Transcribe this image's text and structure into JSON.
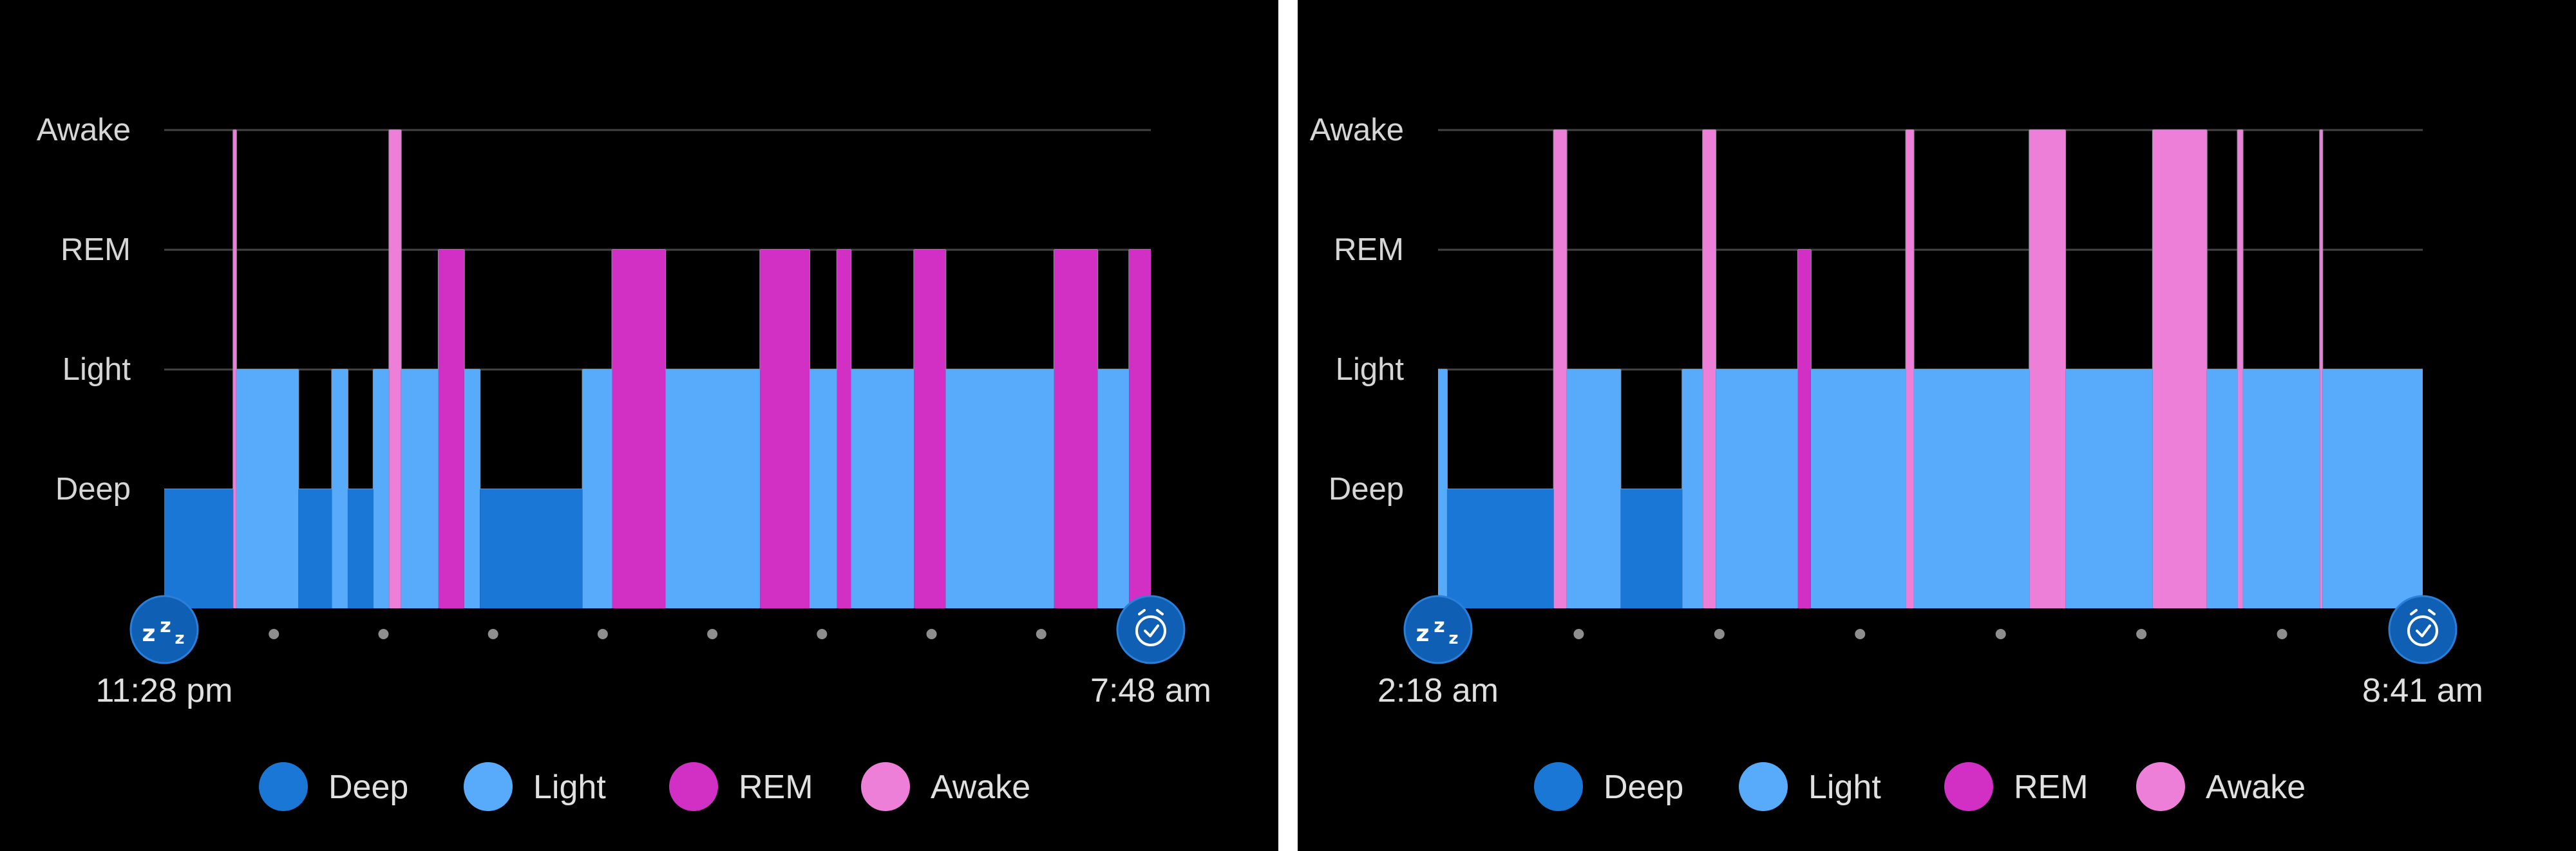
{
  "stage_order": [
    "Deep",
    "Light",
    "REM",
    "Awake"
  ],
  "colors": {
    "Deep": "#1b77d6",
    "Light": "#58abfa",
    "REM": "#d22fc4",
    "Awake": "#ee7fd8",
    "background": "#000000",
    "marker": "#0f5fb5"
  },
  "legend": [
    {
      "stage": "Deep",
      "label": "Deep"
    },
    {
      "stage": "Light",
      "label": "Light"
    },
    {
      "stage": "REM",
      "label": "REM"
    },
    {
      "stage": "Awake",
      "label": "Awake"
    }
  ],
  "icons": {
    "start": "sleep-zzz-icon",
    "end": "alarm-clock-icon"
  },
  "chart_data": [
    {
      "type": "area",
      "title": "",
      "y_categories": [
        "Deep",
        "Light",
        "REM",
        "Awake"
      ],
      "start_label": "11:28 pm",
      "end_label": "7:48 am",
      "x_range_minutes": [
        0,
        500
      ],
      "tick_dots": 8,
      "segments": [
        {
          "start": 0.0,
          "end": 35.0,
          "stage": "Deep"
        },
        {
          "start": 35.0,
          "end": 36.5,
          "stage": "Awake"
        },
        {
          "start": 36.5,
          "end": 68.0,
          "stage": "Light"
        },
        {
          "start": 68.0,
          "end": 85.0,
          "stage": "Deep"
        },
        {
          "start": 85.0,
          "end": 93.0,
          "stage": "Light"
        },
        {
          "start": 93.0,
          "end": 106.0,
          "stage": "Deep"
        },
        {
          "start": 106.0,
          "end": 114.0,
          "stage": "Light"
        },
        {
          "start": 114.0,
          "end": 120.0,
          "stage": "Awake"
        },
        {
          "start": 120.0,
          "end": 139.0,
          "stage": "Light"
        },
        {
          "start": 139.0,
          "end": 152.0,
          "stage": "REM"
        },
        {
          "start": 152.0,
          "end": 160.0,
          "stage": "Light"
        },
        {
          "start": 160.0,
          "end": 212.0,
          "stage": "Deep"
        },
        {
          "start": 212.0,
          "end": 227.0,
          "stage": "Light"
        },
        {
          "start": 227.0,
          "end": 254.0,
          "stage": "REM"
        },
        {
          "start": 254.0,
          "end": 302.0,
          "stage": "Light"
        },
        {
          "start": 302.0,
          "end": 327.0,
          "stage": "REM"
        },
        {
          "start": 327.0,
          "end": 341.0,
          "stage": "Light"
        },
        {
          "start": 341.0,
          "end": 348.0,
          "stage": "REM"
        },
        {
          "start": 348.0,
          "end": 380.0,
          "stage": "Light"
        },
        {
          "start": 380.0,
          "end": 396.0,
          "stage": "REM"
        },
        {
          "start": 396.0,
          "end": 451.0,
          "stage": "Light"
        },
        {
          "start": 451.0,
          "end": 473.0,
          "stage": "REM"
        },
        {
          "start": 473.0,
          "end": 489.0,
          "stage": "Light"
        },
        {
          "start": 489.0,
          "end": 500.0,
          "stage": "REM"
        }
      ]
    },
    {
      "type": "area",
      "title": "",
      "y_categories": [
        "Deep",
        "Light",
        "REM",
        "Awake"
      ],
      "start_label": "2:18 am",
      "end_label": "8:41 am",
      "x_range_minutes": [
        0,
        383
      ],
      "tick_dots": 6,
      "segments": [
        {
          "start": 0.0,
          "end": 3.5,
          "stage": "Light"
        },
        {
          "start": 3.5,
          "end": 45.0,
          "stage": "Deep"
        },
        {
          "start": 45.0,
          "end": 50.0,
          "stage": "Awake"
        },
        {
          "start": 50.0,
          "end": 71.0,
          "stage": "Light"
        },
        {
          "start": 71.0,
          "end": 95.0,
          "stage": "Deep"
        },
        {
          "start": 95.0,
          "end": 103.0,
          "stage": "Light"
        },
        {
          "start": 103.0,
          "end": 108.0,
          "stage": "Awake"
        },
        {
          "start": 108.0,
          "end": 140.0,
          "stage": "Light"
        },
        {
          "start": 140.0,
          "end": 145.0,
          "stage": "REM"
        },
        {
          "start": 145.0,
          "end": 182.0,
          "stage": "Light"
        },
        {
          "start": 182.0,
          "end": 185.0,
          "stage": "Awake"
        },
        {
          "start": 185.0,
          "end": 230.0,
          "stage": "Light"
        },
        {
          "start": 230.0,
          "end": 244.0,
          "stage": "Awake"
        },
        {
          "start": 244.0,
          "end": 278.0,
          "stage": "Light"
        },
        {
          "start": 278.0,
          "end": 299.0,
          "stage": "Awake"
        },
        {
          "start": 299.0,
          "end": 311.0,
          "stage": "Light"
        },
        {
          "start": 311.0,
          "end": 313.0,
          "stage": "Awake"
        },
        {
          "start": 313.0,
          "end": 343.0,
          "stage": "Light"
        },
        {
          "start": 343.0,
          "end": 344.0,
          "stage": "Awake"
        },
        {
          "start": 344.0,
          "end": 383.0,
          "stage": "Light"
        }
      ]
    }
  ]
}
